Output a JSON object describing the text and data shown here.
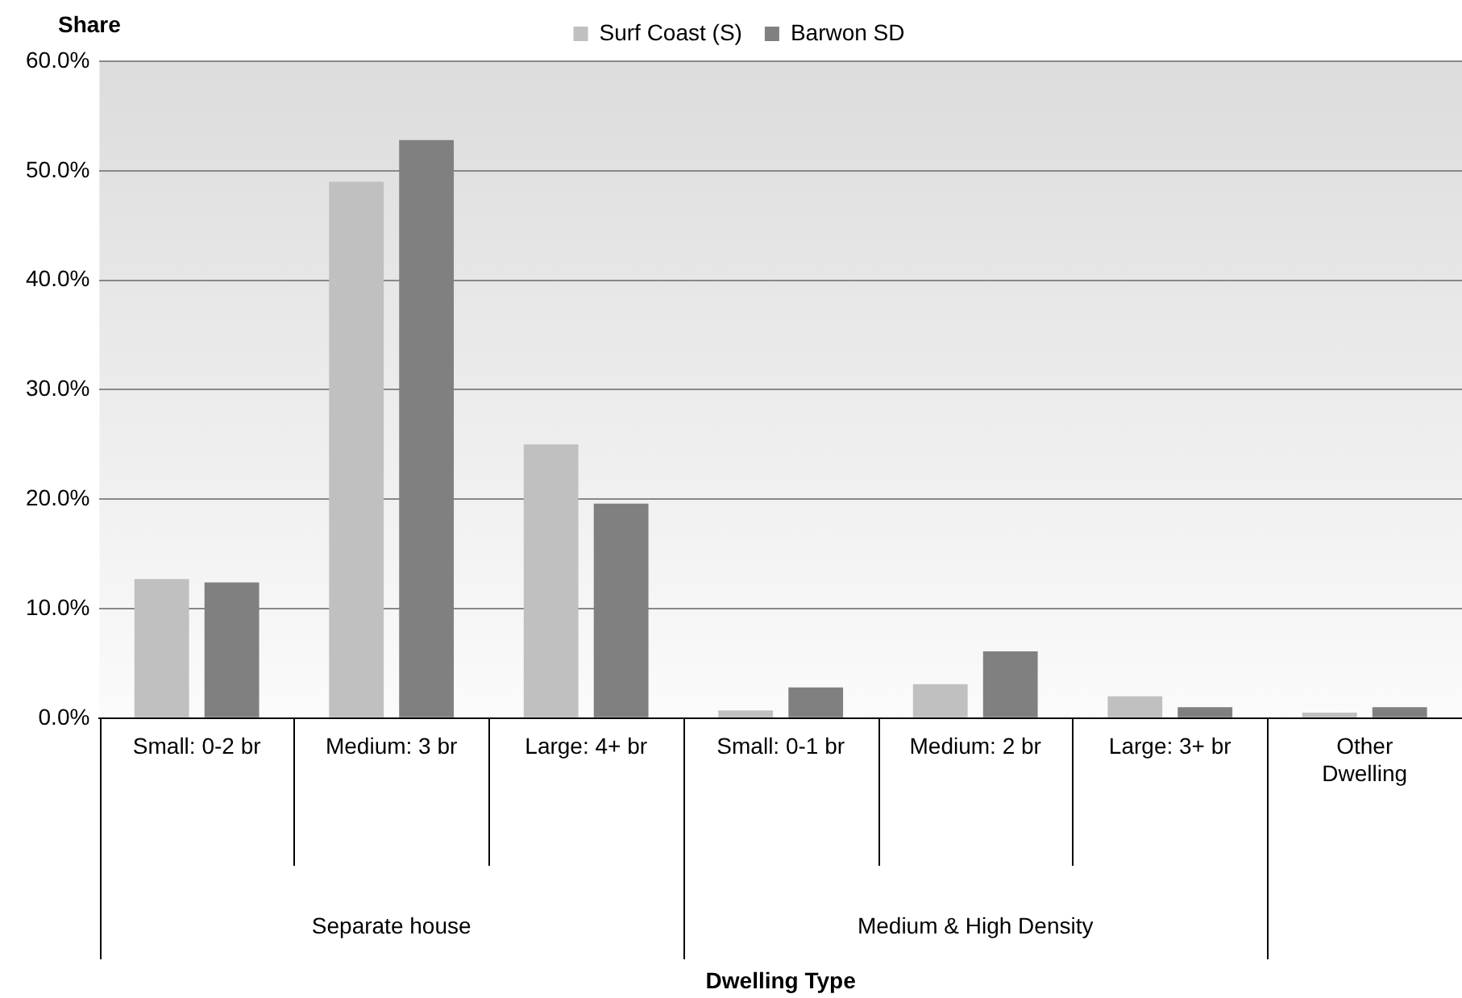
{
  "chart_data": {
    "type": "bar",
    "ylabel": "Share",
    "categories": [
      "Small: 0-2 br",
      "Medium: 3 br",
      "Large: 4+ br",
      "Small: 0-1 br",
      "Medium: 2 br",
      "Large: 3+ br",
      "Other Dwelling"
    ],
    "series": [
      {
        "name": "Surf Coast (S)",
        "color": "#c0c0c0",
        "values": [
          12.7,
          49.0,
          25.0,
          0.7,
          3.1,
          2.0,
          0.5
        ]
      },
      {
        "name": "Barwon SD",
        "color": "#808080",
        "values": [
          12.4,
          52.8,
          19.6,
          2.8,
          6.1,
          1.0,
          1.0
        ]
      }
    ],
    "annotations": [
      "Separate house",
      "Medium & High Density",
      "Dwelling Type"
    ],
    "ylim": [
      0,
      60
    ],
    "yticks": [
      {
        "value": 0,
        "label": "0.0%"
      },
      {
        "value": 10,
        "label": "10.0%"
      },
      {
        "value": 20,
        "label": "20.0%"
      },
      {
        "value": 30,
        "label": "30.0%"
      },
      {
        "value": 40,
        "label": "40.0%"
      },
      {
        "value": 50,
        "label": "50.0%"
      },
      {
        "value": 60,
        "label": "60.0%"
      }
    ],
    "grid": "y",
    "legend": "top"
  }
}
